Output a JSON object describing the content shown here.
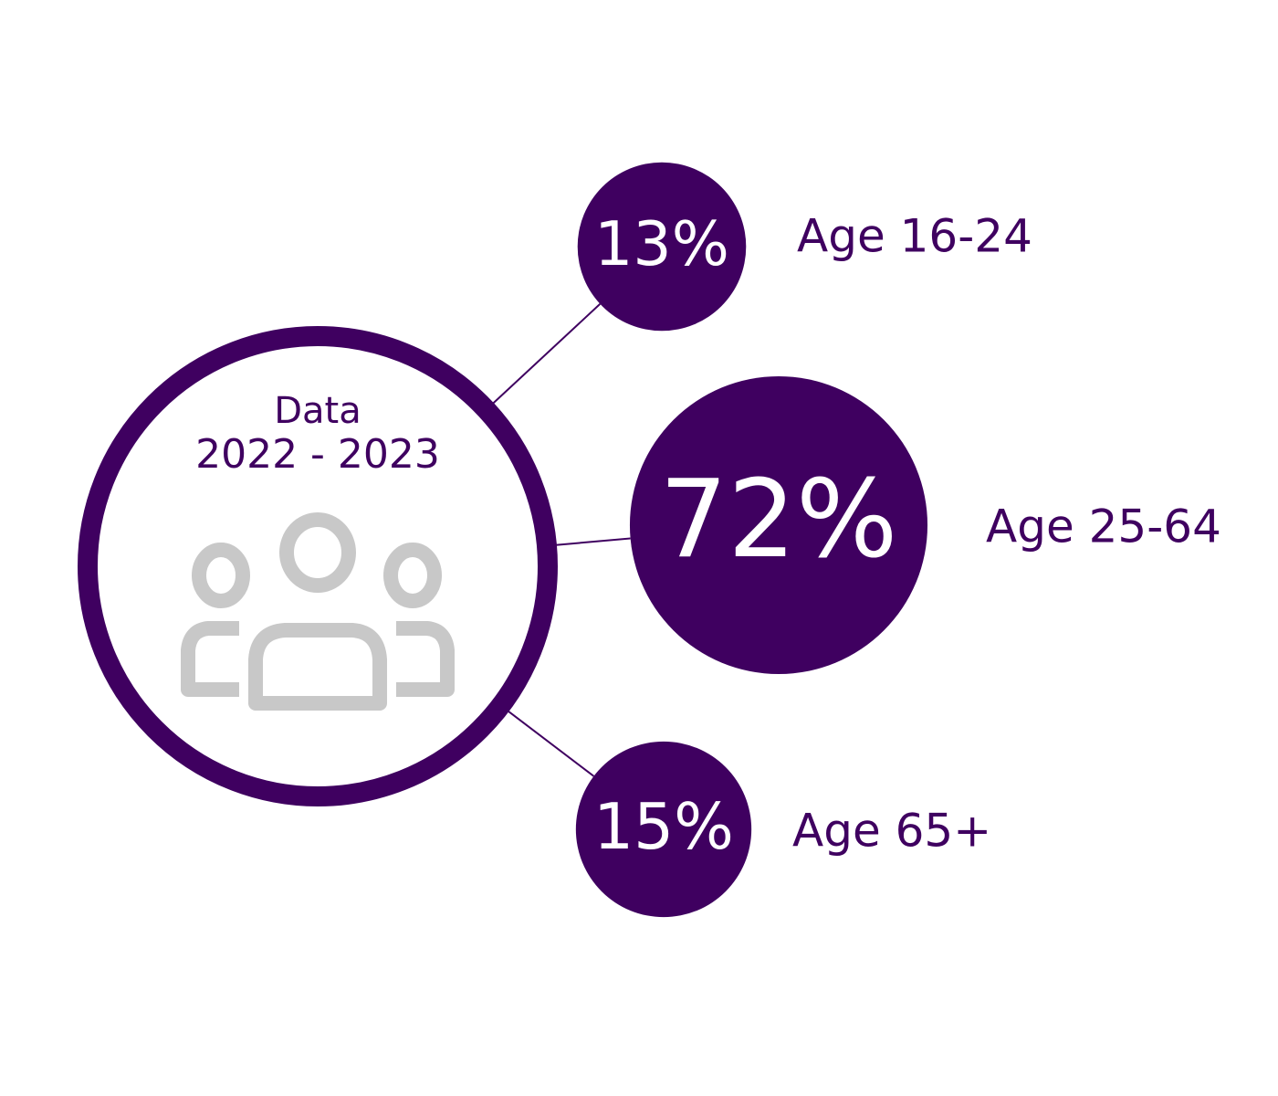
{
  "chart_data": {
    "type": "bubble",
    "title": "Data",
    "subtitle": "2022 - 2023",
    "categories": [
      "Age 16-24",
      "Age 25-64",
      "Age 65+"
    ],
    "values": [
      13,
      72,
      15
    ],
    "value_labels": [
      "13%",
      "72%",
      "15%"
    ],
    "color": "#3f0060"
  }
}
